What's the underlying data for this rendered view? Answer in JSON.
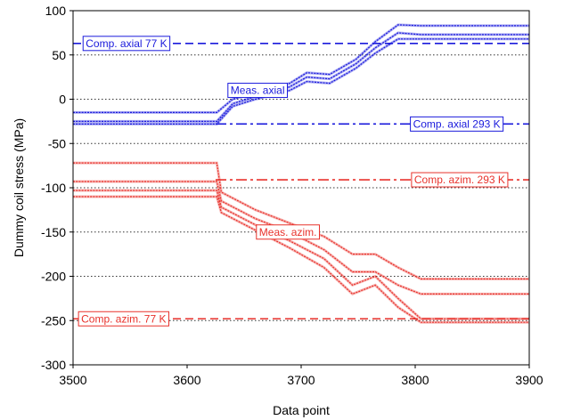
{
  "chart_data": {
    "type": "line",
    "title": "",
    "xlabel": "Data point",
    "ylabel": "Dummy coil stress (MPa)",
    "xlim": [
      3500,
      3900
    ],
    "ylim": [
      -300,
      100
    ],
    "xticks": [
      3500,
      3600,
      3700,
      3800,
      3900
    ],
    "yticks": [
      -300,
      -250,
      -200,
      -150,
      -100,
      -50,
      0,
      50,
      100
    ],
    "grid": "horizontal dotted",
    "legend": "none",
    "colors": {
      "axial": "#1a1adc",
      "azim": "#e8322c"
    },
    "reference_lines": [
      {
        "name": "Comp. axial 77 K",
        "y": 63,
        "style": "dashed",
        "color": "#1a1adc"
      },
      {
        "name": "Comp. axial 293 K",
        "y": -28,
        "style": "dashdot",
        "color": "#1a1adc",
        "x_start": 3625
      },
      {
        "name": "Comp. azim. 293 K",
        "y": -91,
        "style": "dashdot",
        "color": "#e8322c",
        "x_start": 3625
      },
      {
        "name": "Comp. azim. 77 K",
        "y": -248,
        "style": "dashed",
        "color": "#e8322c"
      }
    ],
    "series": [
      {
        "group": "axial",
        "x": [
          3500,
          3626,
          3640,
          3660,
          3690,
          3705,
          3725,
          3748,
          3765,
          3785,
          3805,
          3900
        ],
        "y": [
          -15,
          -15,
          0,
          7,
          18,
          30,
          28,
          45,
          65,
          84,
          83,
          83
        ]
      },
      {
        "group": "axial",
        "x": [
          3500,
          3626,
          3640,
          3660,
          3690,
          3705,
          3725,
          3748,
          3765,
          3785,
          3805,
          3900
        ],
        "y": [
          -25,
          -25,
          -5,
          3,
          14,
          25,
          23,
          40,
          58,
          75,
          73,
          73
        ]
      },
      {
        "group": "axial",
        "x": [
          3500,
          3626,
          3640,
          3660,
          3690,
          3705,
          3725,
          3748,
          3765,
          3785,
          3805,
          3900
        ],
        "y": [
          -28,
          -28,
          -8,
          0,
          10,
          20,
          18,
          35,
          52,
          68,
          68,
          68
        ]
      },
      {
        "group": "azim",
        "x": [
          3500,
          3626,
          3630,
          3660,
          3690,
          3720,
          3745,
          3765,
          3785,
          3805,
          3900
        ],
        "y": [
          -72,
          -72,
          -105,
          -125,
          -140,
          -155,
          -175,
          -175,
          -190,
          -203,
          -203
        ]
      },
      {
        "group": "azim",
        "x": [
          3500,
          3626,
          3630,
          3660,
          3690,
          3720,
          3745,
          3765,
          3785,
          3805,
          3900
        ],
        "y": [
          -93,
          -93,
          -115,
          -135,
          -150,
          -170,
          -195,
          -195,
          -210,
          -220,
          -220
        ]
      },
      {
        "group": "azim",
        "x": [
          3500,
          3626,
          3630,
          3660,
          3690,
          3720,
          3745,
          3765,
          3785,
          3805,
          3900
        ],
        "y": [
          -103,
          -103,
          -122,
          -142,
          -160,
          -180,
          -210,
          -200,
          -225,
          -248,
          -248
        ]
      },
      {
        "group": "azim",
        "x": [
          3500,
          3626,
          3630,
          3660,
          3690,
          3720,
          3745,
          3765,
          3785,
          3805,
          3900
        ],
        "y": [
          -110,
          -110,
          -128,
          -148,
          -168,
          -190,
          -220,
          -210,
          -235,
          -252,
          -252
        ]
      }
    ],
    "annotations": [
      {
        "text": "Comp. axial 77 K",
        "color": "#1a1adc",
        "x": 3508,
        "y": 63
      },
      {
        "text": "Meas. axial",
        "color": "#1a1adc",
        "x": 3635,
        "y": 10
      },
      {
        "text": "Comp. axial 293 K",
        "color": "#1a1adc",
        "x": 3795,
        "y": -28
      },
      {
        "text": "Comp. azim. 293 K",
        "color": "#e8322c",
        "x": 3796,
        "y": -91
      },
      {
        "text": "Meas. azim.",
        "color": "#e8322c",
        "x": 3660,
        "y": -150
      },
      {
        "text": "Comp. azim. 77 K",
        "color": "#e8322c",
        "x": 3504,
        "y": -248
      }
    ]
  }
}
